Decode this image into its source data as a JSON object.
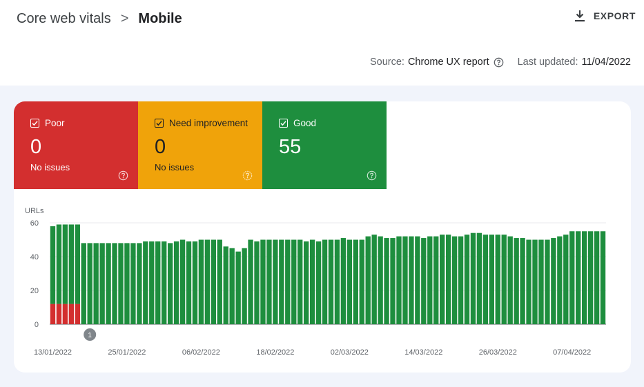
{
  "header": {
    "breadcrumb_parent": "Core web vitals",
    "breadcrumb_separator": ">",
    "breadcrumb_current": "Mobile",
    "export_label": "EXPORT"
  },
  "meta": {
    "source_label": "Source:",
    "source_value": "Chrome UX report",
    "last_updated_label": "Last updated:",
    "last_updated_value": "11/04/2022"
  },
  "tiles": [
    {
      "label": "Poor",
      "count": "0",
      "sub": "No issues",
      "color": "#d32f2f",
      "icon": "help-circle-icon"
    },
    {
      "label": "Need improvement",
      "count": "0",
      "sub": "No issues",
      "color": "#f0a30a",
      "icon": "help-circle-icon"
    },
    {
      "label": "Good",
      "count": "55",
      "sub": "",
      "color": "#1e8e3e",
      "icon": "help-circle-icon"
    }
  ],
  "chart_data": {
    "type": "bar",
    "stacked": true,
    "ylabel": "URLs",
    "ylim": [
      0,
      60
    ],
    "yticks": [
      0,
      20,
      40,
      60
    ],
    "grid": true,
    "xtick_labels": [
      "13/01/2022",
      "25/01/2022",
      "06/02/2022",
      "18/02/2022",
      "02/03/2022",
      "14/03/2022",
      "26/03/2022",
      "07/04/2022"
    ],
    "annotation": "1",
    "series": [
      {
        "color": "#d32f2f",
        "values": [
          12,
          12,
          12,
          12,
          12,
          0,
          0,
          0,
          0,
          0,
          0,
          0,
          0,
          0,
          0,
          0,
          0,
          0,
          0,
          0,
          0,
          0,
          0,
          0,
          0,
          0,
          0,
          0,
          0,
          0,
          0,
          0,
          0,
          0,
          0,
          0,
          0,
          0,
          0,
          0,
          0,
          0,
          0,
          0,
          0,
          0,
          0,
          0,
          0,
          0,
          0,
          0,
          0,
          0,
          0,
          0,
          0,
          0,
          0,
          0,
          0,
          0,
          0,
          0,
          0,
          0,
          0,
          0,
          0,
          0,
          0,
          0,
          0,
          0,
          0,
          0,
          0,
          0,
          0,
          0,
          0,
          0,
          0,
          0,
          0,
          0,
          0,
          0,
          0,
          0
        ]
      },
      {
        "color": "#1e8e3e",
        "values": [
          46,
          47,
          47,
          47,
          47,
          48,
          48,
          48,
          48,
          48,
          48,
          48,
          48,
          48,
          48,
          49,
          49,
          49,
          49,
          48,
          49,
          50,
          49,
          49,
          50,
          50,
          50,
          50,
          46,
          45,
          43,
          45,
          50,
          49,
          50,
          50,
          50,
          50,
          50,
          50,
          50,
          49,
          50,
          49,
          50,
          50,
          50,
          51,
          50,
          50,
          50,
          52,
          53,
          52,
          51,
          51,
          52,
          52,
          52,
          52,
          51,
          52,
          52,
          53,
          53,
          52,
          52,
          53,
          54,
          54,
          53,
          53,
          53,
          53,
          52,
          51,
          51,
          50,
          50,
          50,
          50,
          51,
          52,
          53,
          55,
          55,
          55,
          55,
          55,
          55
        ]
      }
    ]
  }
}
